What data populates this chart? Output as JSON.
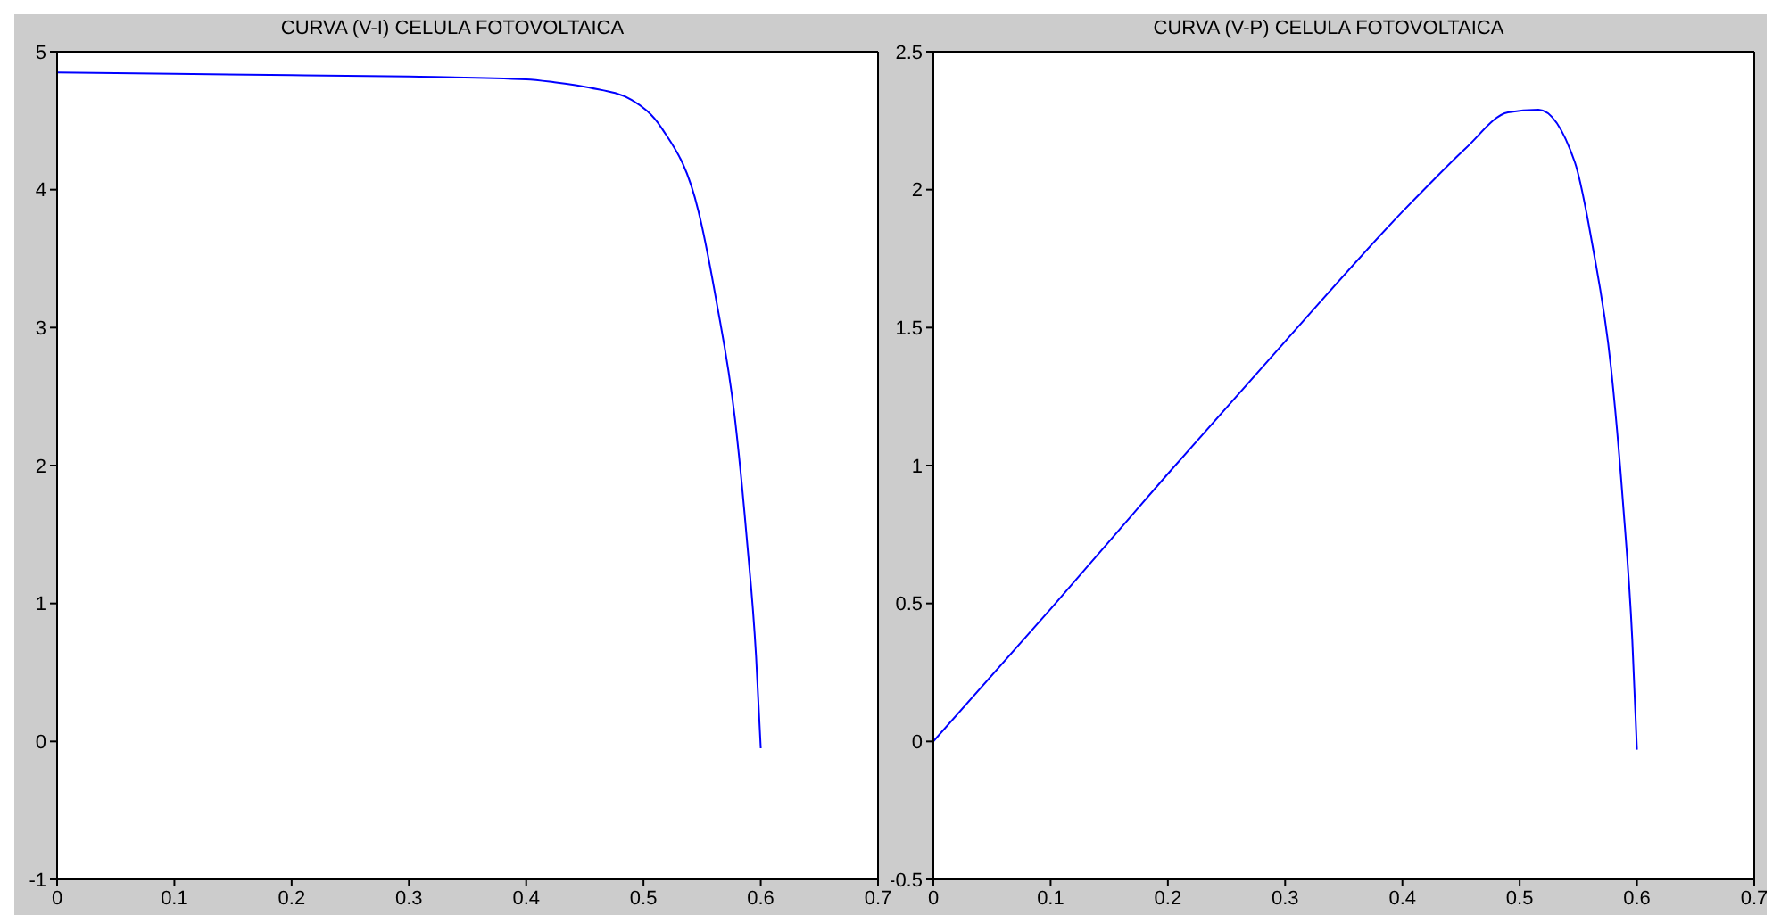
{
  "chart_data": [
    {
      "type": "line",
      "title": "CURVA (V-I) CELULA FOTOVOLTAICA",
      "series": [
        {
          "color": "#0000ff",
          "x": [
            0,
            0.1,
            0.2,
            0.3,
            0.4,
            0.423,
            0.454,
            0.49,
            0.516,
            0.547,
            0.562,
            0.578,
            0.588,
            0.596,
            0.6
          ],
          "values": [
            4.85,
            4.84,
            4.83,
            4.82,
            4.8,
            4.78,
            4.74,
            4.65,
            4.44,
            3.84,
            3.2,
            2.34,
            1.48,
            0.62,
            -0.05
          ]
        }
      ],
      "xlim": [
        0,
        0.7
      ],
      "xticks": [
        0,
        0.1,
        0.2,
        0.3,
        0.4,
        0.5,
        0.6,
        0.7
      ],
      "ylim": [
        -1,
        5
      ],
      "yticks": [
        -1,
        0,
        1,
        2,
        3,
        4,
        5
      ],
      "marker": "none",
      "line_style": "solid"
    },
    {
      "type": "line",
      "title": "CURVA (V-P) CELULA FOTOVOLTAICA",
      "series": [
        {
          "color": "#0000ff",
          "x": [
            0,
            0.1,
            0.2,
            0.3,
            0.4,
            0.423,
            0.454,
            0.49,
            0.516,
            0.547,
            0.562,
            0.578,
            0.588,
            0.596,
            0.6
          ],
          "values": [
            0,
            0.48,
            0.97,
            1.45,
            1.92,
            2.02,
            2.15,
            2.28,
            2.29,
            2.1,
            1.8,
            1.35,
            0.87,
            0.37,
            -0.03
          ]
        }
      ],
      "xlim": [
        0,
        0.7
      ],
      "xticks": [
        0,
        0.1,
        0.2,
        0.3,
        0.4,
        0.5,
        0.6,
        0.7
      ],
      "ylim": [
        -0.5,
        2.5
      ],
      "yticks": [
        -0.5,
        0,
        0.5,
        1,
        1.5,
        2,
        2.5
      ],
      "marker": "none",
      "line_style": "solid"
    }
  ]
}
